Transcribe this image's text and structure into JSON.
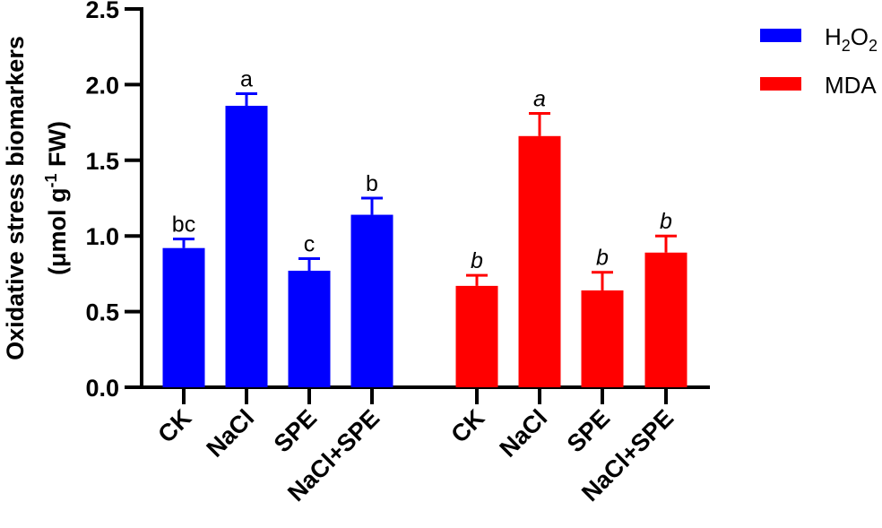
{
  "chart_data": {
    "type": "bar",
    "title": "",
    "xlabel": "",
    "ylabel": "Oxidative stress biomarkers (μmol g⁻¹ FW)",
    "ylabel_line1": "Oxidative stress biomarkers",
    "ylabel_line2_prefix": "(μmol g",
    "ylabel_line2_sup": "-1",
    "ylabel_line2_suffix": " FW)",
    "ylim": [
      0,
      2.5
    ],
    "yticks": [
      "0.0",
      "0.5",
      "1.0",
      "1.5",
      "2.0",
      "2.5"
    ],
    "grid": false,
    "legend_position": "top-right",
    "categories": [
      "CK",
      "NaCl",
      "SPE",
      "NaCl+SPE"
    ],
    "series": [
      {
        "name": "H2O2",
        "legend_label_main": "H",
        "legend_label_sub1": "2",
        "legend_label_mid": "O",
        "legend_label_sub2": "2",
        "color": "#0000ff",
        "values": [
          0.92,
          1.86,
          0.77,
          1.14
        ],
        "errors": [
          0.06,
          0.08,
          0.08,
          0.11
        ],
        "significance": [
          "bc",
          "a",
          "c",
          "b"
        ],
        "significance_italic": false
      },
      {
        "name": "MDA",
        "legend_label_main": "MDA",
        "color": "#ff0000",
        "values": [
          0.67,
          1.66,
          0.64,
          0.89
        ],
        "errors": [
          0.07,
          0.15,
          0.12,
          0.11
        ],
        "significance": [
          "b",
          "a",
          "b",
          "b"
        ],
        "significance_italic": true
      }
    ]
  }
}
